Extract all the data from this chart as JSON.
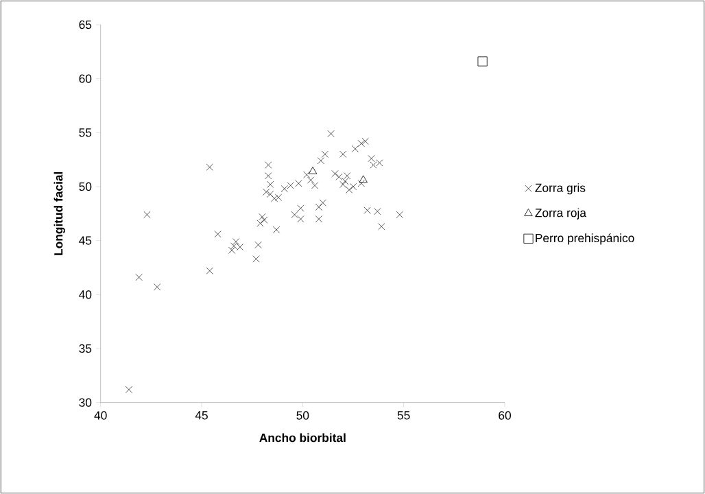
{
  "chart_data": {
    "type": "scatter",
    "xlabel": "Ancho biorbital",
    "ylabel": "Longitud facial",
    "xlim": [
      40,
      60
    ],
    "xticks": [
      40,
      45,
      50,
      55,
      60
    ],
    "ylim": [
      30,
      65
    ],
    "yticks": [
      30,
      35,
      40,
      45,
      50,
      55,
      60,
      65
    ],
    "grid": false,
    "legend": "right",
    "series": [
      {
        "name": "Zorra gris",
        "color": "#303030",
        "marker": "cross",
        "x": [
          41.4,
          41.9,
          42.3,
          42.8,
          45.4,
          45.4,
          45.8,
          46.5,
          46.7,
          46.9,
          46.6,
          47.7,
          47.8,
          47.9,
          48.0,
          48.1,
          48.3,
          48.3,
          48.4,
          48.2,
          48.4,
          48.6,
          48.8,
          48.7,
          49.1,
          49.4,
          49.6,
          49.9,
          49.9,
          49.8,
          50.2,
          50.4,
          50.6,
          50.8,
          50.8,
          51.0,
          50.9,
          51.1,
          51.4,
          51.6,
          51.8,
          52.0,
          52.0,
          52.1,
          52.3,
          52.5,
          52.6,
          52.9,
          53.1,
          52.9,
          53.2,
          53.4,
          53.5,
          53.8,
          53.7,
          53.9,
          54.8,
          52.2
        ],
        "values": [
          31.2,
          41.6,
          47.4,
          40.7,
          51.8,
          42.2,
          45.6,
          44.1,
          44.9,
          44.4,
          44.5,
          43.3,
          44.6,
          46.6,
          47.2,
          46.9,
          52.0,
          51.0,
          50.2,
          49.5,
          49.3,
          48.9,
          49.0,
          46.0,
          49.8,
          50.1,
          47.4,
          47.0,
          48.0,
          50.3,
          51.1,
          50.6,
          50.1,
          48.1,
          47.0,
          48.5,
          52.4,
          53.0,
          54.9,
          51.2,
          50.9,
          50.2,
          53.0,
          50.5,
          49.7,
          50.0,
          53.5,
          54.0,
          54.2,
          50.3,
          47.8,
          52.6,
          52.0,
          52.2,
          47.7,
          46.3,
          47.4,
          51.0
        ]
      },
      {
        "name": "Zorra roja",
        "color": "#000000",
        "marker": "triangle",
        "x": [
          50.5,
          53.0
        ],
        "values": [
          51.4,
          50.6
        ]
      },
      {
        "name": "Perro prehispánico",
        "color": "#000000",
        "marker": "square",
        "x": [
          58.9
        ],
        "values": [
          61.6
        ]
      }
    ]
  }
}
